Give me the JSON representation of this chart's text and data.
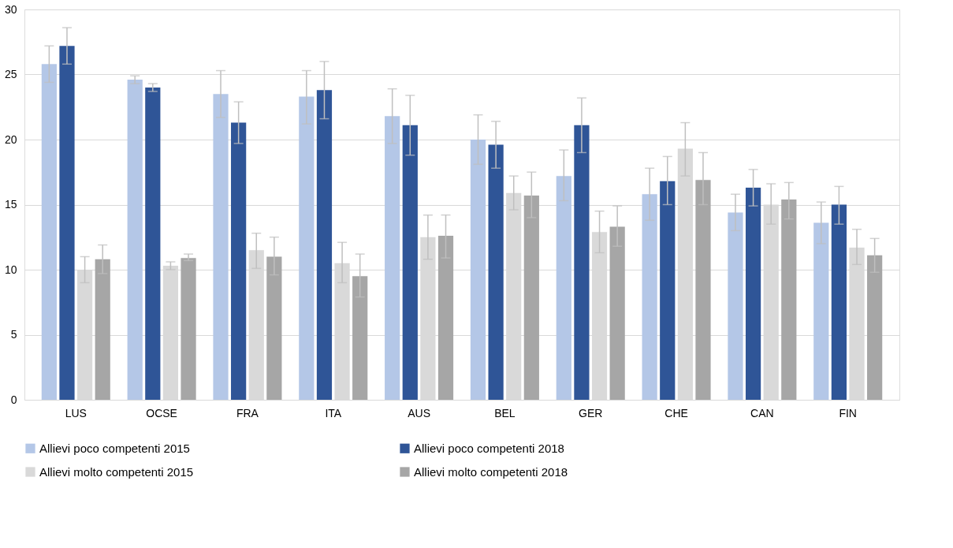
{
  "chart_data": {
    "type": "bar",
    "categories": [
      "LUS",
      "OCSE",
      "FRA",
      "ITA",
      "AUS",
      "BEL",
      "GER",
      "CHE",
      "CAN",
      "FIN"
    ],
    "ylim": [
      0,
      30
    ],
    "yticks": [
      0,
      5,
      10,
      15,
      20,
      25,
      30
    ],
    "grid": "y",
    "legend": "bottom",
    "series": [
      {
        "name": "Allievi poco competenti 2015",
        "color": "#b4c7e7",
        "values": [
          25.8,
          24.6,
          23.5,
          23.3,
          21.8,
          20.0,
          17.2,
          15.8,
          14.4,
          13.6
        ],
        "errors": [
          [
            24.4,
            27.2
          ],
          [
            24.3,
            24.9
          ],
          [
            21.7,
            25.3
          ],
          [
            21.2,
            25.3
          ],
          [
            19.7,
            23.9
          ],
          [
            18.1,
            21.9
          ],
          [
            15.3,
            19.2
          ],
          [
            13.8,
            17.8
          ],
          [
            13.0,
            15.8
          ],
          [
            12.0,
            15.2
          ]
        ]
      },
      {
        "name": "Allievi poco competenti 2018",
        "color": "#2f5597",
        "values": [
          27.2,
          24.0,
          21.3,
          23.8,
          21.1,
          19.6,
          21.1,
          16.8,
          16.3,
          15.0
        ],
        "errors": [
          [
            25.8,
            28.6
          ],
          [
            23.7,
            24.3
          ],
          [
            19.7,
            22.9
          ],
          [
            21.6,
            26.0
          ],
          [
            18.8,
            23.4
          ],
          [
            17.8,
            21.4
          ],
          [
            19.0,
            23.2
          ],
          [
            15.0,
            18.7
          ],
          [
            14.9,
            17.7
          ],
          [
            13.5,
            16.4
          ]
        ]
      },
      {
        "name": "Allievi molto competenti 2015",
        "color": "#d9d9d9",
        "values": [
          10.0,
          10.3,
          11.5,
          10.5,
          12.5,
          15.9,
          12.9,
          19.3,
          15.0,
          11.7
        ],
        "errors": [
          [
            9.0,
            11.0
          ],
          [
            10.0,
            10.6
          ],
          [
            10.1,
            12.8
          ],
          [
            9.0,
            12.1
          ],
          [
            10.8,
            14.2
          ],
          [
            14.6,
            17.2
          ],
          [
            11.3,
            14.5
          ],
          [
            17.2,
            21.3
          ],
          [
            13.5,
            16.6
          ],
          [
            10.4,
            13.1
          ]
        ]
      },
      {
        "name": "Allievi molto competenti 2018",
        "color": "#a6a6a6",
        "values": [
          10.8,
          10.9,
          11.0,
          9.5,
          12.6,
          15.7,
          13.3,
          16.9,
          15.4,
          11.1
        ],
        "errors": [
          [
            9.7,
            11.9
          ],
          [
            10.7,
            11.2
          ],
          [
            9.6,
            12.5
          ],
          [
            7.9,
            11.2
          ],
          [
            10.9,
            14.2
          ],
          [
            14.0,
            17.5
          ],
          [
            11.8,
            14.9
          ],
          [
            15.0,
            19.0
          ],
          [
            13.9,
            16.7
          ],
          [
            9.8,
            12.4
          ]
        ]
      }
    ]
  }
}
